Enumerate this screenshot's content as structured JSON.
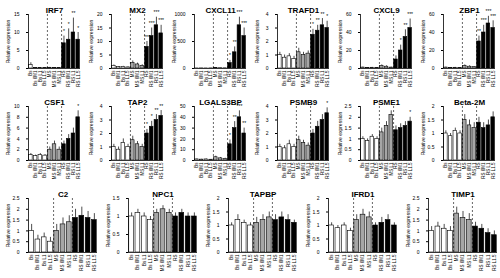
{
  "chart_data": [
    {
      "type": "bar",
      "title": "IRF7",
      "y_label": "Relative expression",
      "categories": [
        "Bs",
        "Bs 6M1",
        "Bs L1",
        "Bs L1.5",
        "MS",
        "MS 6M1",
        "MS L1",
        "RS",
        "RS 6M1",
        "RS L1",
        "RS L1.5"
      ],
      "values": [
        1,
        0.1,
        0.1,
        0.1,
        0.2,
        0.1,
        0.1,
        7,
        8,
        10,
        8
      ],
      "errors": [
        0.6,
        0.05,
        0.05,
        0.05,
        0.1,
        0.05,
        0.05,
        2,
        3,
        4,
        2
      ],
      "stars": [
        null,
        null,
        null,
        null,
        null,
        null,
        null,
        "*",
        "*",
        "**",
        "*"
      ],
      "colors": [
        "#ffffff",
        "#ffffff",
        "#ffffff",
        "#ffffff",
        "#a6a6a6",
        "#a6a6a6",
        "#a6a6a6",
        "#000000",
        "#000000",
        "#000000",
        "#000000"
      ],
      "ylim": [
        0,
        15
      ],
      "yticks": [
        0,
        5,
        10,
        15
      ]
    },
    {
      "type": "bar",
      "title": "MX2",
      "y_label": "Relative expression",
      "categories": [
        "Bs",
        "Bs 6M1",
        "Bs L1",
        "Bs L1.5",
        "MS",
        "MS 6M1",
        "MS L1",
        "RS",
        "RS 6M1",
        "RS L1",
        "RS L1.5"
      ],
      "values": [
        1,
        0.5,
        0.6,
        0.4,
        2,
        1.5,
        1,
        8,
        12,
        16,
        13
      ],
      "errors": [
        0.3,
        0.2,
        0.2,
        0.2,
        0.8,
        0.5,
        0.4,
        2,
        3,
        3,
        3
      ],
      "stars": [
        null,
        null,
        null,
        null,
        null,
        null,
        null,
        "***",
        "***",
        "***",
        "***"
      ],
      "colors": [
        "#ffffff",
        "#ffffff",
        "#ffffff",
        "#ffffff",
        "#a6a6a6",
        "#a6a6a6",
        "#a6a6a6",
        "#000000",
        "#000000",
        "#000000",
        "#000000"
      ],
      "ylim": [
        0,
        20
      ],
      "yticks": [
        0,
        5,
        10,
        15,
        20
      ]
    },
    {
      "type": "bar",
      "title": "CXCL11",
      "y_label": "Relative expression",
      "categories": [
        "Bs",
        "Bs 6M1",
        "Bs L1",
        "Bs L1.5",
        "MS",
        "MS 6M1",
        "MS L1",
        "RS",
        "RS 6M1",
        "RS L1",
        "RS L1.5"
      ],
      "values": [
        1,
        2,
        1,
        2,
        10,
        5,
        3,
        100,
        300,
        800,
        600
      ],
      "errors": [
        1,
        1,
        1,
        1,
        5,
        3,
        2,
        50,
        100,
        150,
        150
      ],
      "stars": [
        null,
        null,
        null,
        null,
        null,
        null,
        null,
        "*",
        "**",
        "***",
        "***"
      ],
      "colors": [
        "#ffffff",
        "#ffffff",
        "#ffffff",
        "#ffffff",
        "#a6a6a6",
        "#a6a6a6",
        "#a6a6a6",
        "#000000",
        "#000000",
        "#000000",
        "#000000"
      ],
      "ylim": [
        0,
        1000
      ],
      "yticks": [
        0,
        500,
        1000
      ]
    },
    {
      "type": "bar",
      "title": "TRAFD1",
      "y_label": "Relative expression",
      "categories": [
        "Bs",
        "Bs 6M1",
        "Bs L1",
        "Bs L1.5",
        "MS",
        "MS 6M1",
        "MS L1",
        "RS",
        "RS 6M1",
        "RS L1",
        "RS L1.5"
      ],
      "values": [
        1,
        0.8,
        0.9,
        0.7,
        1.2,
        1,
        1.1,
        2.5,
        2.8,
        3.2,
        3
      ],
      "errors": [
        0.2,
        0.2,
        0.2,
        0.2,
        0.3,
        0.2,
        0.2,
        0.4,
        0.4,
        0.5,
        0.5
      ],
      "stars": [
        null,
        null,
        null,
        null,
        null,
        null,
        null,
        "*",
        "**",
        "**",
        "*"
      ],
      "colors": [
        "#ffffff",
        "#ffffff",
        "#ffffff",
        "#ffffff",
        "#a6a6a6",
        "#a6a6a6",
        "#a6a6a6",
        "#000000",
        "#000000",
        "#000000",
        "#000000"
      ],
      "ylim": [
        0,
        4
      ],
      "yticks": [
        0,
        1,
        2,
        3,
        4
      ]
    },
    {
      "type": "bar",
      "title": "CXCL9",
      "y_label": "Relative expression",
      "categories": [
        "Bs",
        "Bs 6M1",
        "Bs L1",
        "Bs L1.5",
        "MS",
        "MS 6M1",
        "MS L1",
        "RS",
        "RS 6M1",
        "RS L1",
        "RS L1.5"
      ],
      "values": [
        1,
        0.5,
        0.8,
        0.5,
        3,
        2,
        1,
        10,
        20,
        35,
        45
      ],
      "errors": [
        0.5,
        0.3,
        0.4,
        0.3,
        1,
        1,
        0.5,
        4,
        6,
        8,
        10
      ],
      "stars": [
        null,
        null,
        null,
        null,
        null,
        null,
        null,
        null,
        "*",
        "**",
        "***"
      ],
      "colors": [
        "#ffffff",
        "#ffffff",
        "#ffffff",
        "#ffffff",
        "#a6a6a6",
        "#a6a6a6",
        "#a6a6a6",
        "#000000",
        "#000000",
        "#000000",
        "#000000"
      ],
      "ylim": [
        0,
        60
      ],
      "yticks": [
        0,
        20,
        40,
        60
      ]
    },
    {
      "type": "bar",
      "title": "ZBP1",
      "y_label": "Relative expression",
      "categories": [
        "Bs",
        "Bs 6M1",
        "Bs L1",
        "Bs L1.5",
        "MS",
        "MS 6M1",
        "MS L1",
        "RS",
        "RS 6M1",
        "RS L1",
        "RS L1.5"
      ],
      "values": [
        1,
        0.6,
        0.8,
        0.5,
        3,
        2,
        1.5,
        30,
        40,
        50,
        45
      ],
      "errors": [
        0.5,
        0.3,
        0.4,
        0.3,
        1,
        1,
        0.5,
        6,
        8,
        8,
        8
      ],
      "stars": [
        null,
        null,
        null,
        null,
        null,
        null,
        null,
        "**",
        "***",
        "***",
        "***"
      ],
      "colors": [
        "#ffffff",
        "#ffffff",
        "#ffffff",
        "#ffffff",
        "#a6a6a6",
        "#a6a6a6",
        "#a6a6a6",
        "#000000",
        "#000000",
        "#000000",
        "#000000"
      ],
      "ylim": [
        0,
        60
      ],
      "yticks": [
        0,
        20,
        40,
        60
      ]
    },
    {
      "type": "bar",
      "title": "CSF1",
      "y_label": "Relative expression",
      "categories": [
        "Bs",
        "Bs 6M1",
        "Bs L1",
        "Bs L1.5",
        "MS",
        "MS 6M1",
        "MS L1",
        "RS",
        "RS 6M1",
        "RS L1",
        "RS L1.5"
      ],
      "values": [
        1,
        0.8,
        1,
        0.9,
        2,
        3,
        2,
        3,
        4,
        5,
        8
      ],
      "errors": [
        0.3,
        0.2,
        0.3,
        0.2,
        0.5,
        0.6,
        0.5,
        0.6,
        0.8,
        1,
        1.2
      ],
      "stars": [
        null,
        null,
        null,
        null,
        null,
        null,
        null,
        null,
        null,
        null,
        "*"
      ],
      "colors": [
        "#ffffff",
        "#ffffff",
        "#ffffff",
        "#ffffff",
        "#a6a6a6",
        "#a6a6a6",
        "#a6a6a6",
        "#000000",
        "#000000",
        "#000000",
        "#000000"
      ],
      "ylim": [
        0,
        10
      ],
      "yticks": [
        0,
        2,
        4,
        6,
        8,
        10
      ]
    },
    {
      "type": "bar",
      "title": "TAP2",
      "y_label": "Relative expression",
      "categories": [
        "Bs",
        "Bs 6M1",
        "Bs L1",
        "Bs L1.5",
        "MS",
        "MS 6M1",
        "MS L1",
        "RS",
        "RS 6M1",
        "RS L1",
        "RS L1.5"
      ],
      "values": [
        1,
        0.8,
        1.3,
        1,
        1.5,
        1.2,
        1,
        2,
        2.5,
        3,
        3.3
      ],
      "errors": [
        0.2,
        0.2,
        0.3,
        0.2,
        0.3,
        0.2,
        0.2,
        0.3,
        0.4,
        0.4,
        0.4
      ],
      "stars": [
        null,
        null,
        null,
        null,
        null,
        null,
        null,
        "*",
        "*",
        "**",
        "**"
      ],
      "colors": [
        "#ffffff",
        "#ffffff",
        "#ffffff",
        "#ffffff",
        "#a6a6a6",
        "#a6a6a6",
        "#a6a6a6",
        "#000000",
        "#000000",
        "#000000",
        "#000000"
      ],
      "ylim": [
        0,
        4
      ],
      "yticks": [
        0,
        1,
        2,
        3,
        4
      ]
    },
    {
      "type": "bar",
      "title": "LGALS3BP",
      "y_label": "Relative expression",
      "categories": [
        "Bs",
        "Bs 6M1",
        "Bs L1",
        "Bs L1.5",
        "MS",
        "MS 6M1",
        "MS L1",
        "RS",
        "RS 6M1",
        "RS L1",
        "RS L1.5"
      ],
      "values": [
        1,
        0.8,
        1,
        0.7,
        3,
        2,
        1.5,
        15,
        30,
        40,
        25
      ],
      "errors": [
        0.4,
        0.3,
        0.4,
        0.3,
        1,
        0.8,
        0.6,
        4,
        6,
        6,
        5
      ],
      "stars": [
        null,
        null,
        null,
        null,
        null,
        null,
        null,
        "*",
        "**",
        "***",
        "**"
      ],
      "colors": [
        "#ffffff",
        "#ffffff",
        "#ffffff",
        "#ffffff",
        "#a6a6a6",
        "#a6a6a6",
        "#a6a6a6",
        "#000000",
        "#000000",
        "#000000",
        "#000000"
      ],
      "ylim": [
        0,
        50
      ],
      "yticks": [
        0,
        10,
        20,
        30,
        40,
        50
      ]
    },
    {
      "type": "bar",
      "title": "PSMB9",
      "y_label": "Relative expression",
      "categories": [
        "Bs",
        "Bs 6M1",
        "Bs L1",
        "Bs L1.5",
        "MS",
        "MS 6M1",
        "MS L1",
        "RS",
        "RS 6M1",
        "RS L1",
        "RS L1.5"
      ],
      "values": [
        1,
        0.9,
        1.2,
        1,
        1.5,
        1.3,
        1.1,
        2,
        2.5,
        3,
        3.5
      ],
      "errors": [
        0.2,
        0.2,
        0.3,
        0.2,
        0.3,
        0.2,
        0.2,
        0.3,
        0.4,
        0.4,
        0.4
      ],
      "stars": [
        null,
        null,
        null,
        null,
        null,
        null,
        null,
        null,
        null,
        null,
        "*"
      ],
      "colors": [
        "#ffffff",
        "#ffffff",
        "#ffffff",
        "#ffffff",
        "#a6a6a6",
        "#a6a6a6",
        "#a6a6a6",
        "#000000",
        "#000000",
        "#000000",
        "#000000"
      ],
      "ylim": [
        0,
        4
      ],
      "yticks": [
        0,
        1,
        2,
        3,
        4
      ]
    },
    {
      "type": "bar",
      "title": "PSME1",
      "y_label": "Relative expression",
      "categories": [
        "Bs",
        "Bs 6M1",
        "Bs L1",
        "Bs L1.5",
        "MS",
        "MS 6M1",
        "MS L1",
        "RS",
        "RS 6M1",
        "RS L1",
        "RS L1.5"
      ],
      "values": [
        1,
        0.9,
        1.1,
        1,
        1.3,
        1.6,
        2.1,
        1.4,
        1.5,
        1.6,
        1.8
      ],
      "errors": [
        0.1,
        0.1,
        0.1,
        0.1,
        0.2,
        0.2,
        0.2,
        0.2,
        0.2,
        0.2,
        0.2
      ],
      "stars": [
        null,
        null,
        null,
        null,
        null,
        null,
        null,
        null,
        null,
        null,
        "*"
      ],
      "colors": [
        "#ffffff",
        "#ffffff",
        "#ffffff",
        "#ffffff",
        "#a6a6a6",
        "#a6a6a6",
        "#a6a6a6",
        "#000000",
        "#000000",
        "#000000",
        "#000000"
      ],
      "ylim": [
        0,
        2.5
      ],
      "yticks": [
        0,
        0.5,
        1,
        1.5,
        2,
        2.5
      ]
    },
    {
      "type": "bar",
      "title": "Beta-2M",
      "y_label": "Relative expression",
      "categories": [
        "Bs",
        "Bs 6M1",
        "Bs L1",
        "Bs L1.5",
        "MS",
        "MS 6M1",
        "MS L1",
        "RS",
        "RS 6M1",
        "RS L1",
        "RS L1.5"
      ],
      "values": [
        1,
        0.9,
        1.1,
        1,
        1.5,
        1.3,
        1.2,
        1.4,
        1.2,
        1.3,
        1.6
      ],
      "errors": [
        0.1,
        0.1,
        0.1,
        0.1,
        0.2,
        0.2,
        0.2,
        0.2,
        0.2,
        0.2,
        0.2
      ],
      "colors": [
        "#ffffff",
        "#ffffff",
        "#ffffff",
        "#ffffff",
        "#a6a6a6",
        "#a6a6a6",
        "#a6a6a6",
        "#000000",
        "#000000",
        "#000000",
        "#000000"
      ],
      "ylim": [
        0,
        2
      ],
      "yticks": [
        0,
        0.5,
        1,
        1.5,
        2
      ]
    },
    {
      "type": "bar",
      "title": "C2",
      "y_label": "Relative expression",
      "categories": [
        "Bs",
        "Bs 6M1",
        "Bs L1",
        "Bs L1.5",
        "MS",
        "MS 6M1",
        "MS L1",
        "RS",
        "RS 6M1",
        "RS L1",
        "RS L1.5"
      ],
      "values": [
        1,
        0.6,
        0.7,
        0.5,
        1,
        1.3,
        1.4,
        1.6,
        1.7,
        1.6,
        1.5
      ],
      "errors": [
        0.3,
        0.2,
        0.2,
        0.2,
        0.3,
        0.3,
        0.3,
        0.4,
        0.4,
        0.3,
        0.3
      ],
      "colors": [
        "#ffffff",
        "#ffffff",
        "#ffffff",
        "#ffffff",
        "#a6a6a6",
        "#a6a6a6",
        "#a6a6a6",
        "#000000",
        "#000000",
        "#000000",
        "#000000"
      ],
      "ylim": [
        0,
        2.5
      ],
      "yticks": [
        0,
        0.5,
        1,
        1.5,
        2,
        2.5
      ]
    },
    {
      "type": "bar",
      "title": "NPC1",
      "y_label": "Relative expression",
      "categories": [
        "Bs",
        "Bs 6M1",
        "Bs L1",
        "Bs L1.5",
        "MS",
        "MS 6M1",
        "MS L1",
        "RS",
        "RS 6M1",
        "RS L1",
        "RS L1.5"
      ],
      "values": [
        1,
        1.1,
        1,
        0.9,
        1.1,
        1.2,
        1.1,
        1,
        1.1,
        1,
        1
      ],
      "errors": [
        0.1,
        0.1,
        0.1,
        0.1,
        0.1,
        0.1,
        0.1,
        0.1,
        0.1,
        0.1,
        0.1
      ],
      "colors": [
        "#ffffff",
        "#ffffff",
        "#ffffff",
        "#ffffff",
        "#a6a6a6",
        "#a6a6a6",
        "#a6a6a6",
        "#000000",
        "#000000",
        "#000000",
        "#000000"
      ],
      "ylim": [
        0,
        1.5
      ],
      "yticks": [
        0,
        0.5,
        1,
        1.5
      ]
    },
    {
      "type": "bar",
      "title": "TAPBP",
      "y_label": "Relative expression",
      "categories": [
        "Bs",
        "Bs 6M1",
        "Bs L1",
        "Bs L1.5",
        "MS",
        "MS 6M1",
        "MS L1",
        "RS",
        "RS 6M1",
        "RS L1",
        "RS L1.5"
      ],
      "values": [
        1,
        1.2,
        1.1,
        1,
        1.1,
        1.2,
        1.3,
        1.2,
        1.3,
        1.2,
        1.1
      ],
      "errors": [
        0.1,
        0.2,
        0.1,
        0.1,
        0.2,
        0.2,
        0.2,
        0.2,
        0.2,
        0.2,
        0.1
      ],
      "colors": [
        "#ffffff",
        "#ffffff",
        "#ffffff",
        "#ffffff",
        "#a6a6a6",
        "#a6a6a6",
        "#a6a6a6",
        "#000000",
        "#000000",
        "#000000",
        "#000000"
      ],
      "ylim": [
        0,
        2
      ],
      "yticks": [
        0,
        0.5,
        1,
        1.5,
        2
      ]
    },
    {
      "type": "bar",
      "title": "IFRD1",
      "y_label": "Relative expression",
      "categories": [
        "Bs",
        "Bs 6M1",
        "Bs L1",
        "Bs L1.5",
        "MS",
        "MS 6M1",
        "MS L1",
        "RS",
        "RS 6M1",
        "RS L1",
        "RS L1.5"
      ],
      "values": [
        1,
        0.9,
        1,
        0.8,
        1.2,
        1.4,
        1.3,
        1,
        1.1,
        1.2,
        1
      ],
      "errors": [
        0.1,
        0.1,
        0.1,
        0.1,
        0.2,
        0.2,
        0.2,
        0.1,
        0.2,
        0.2,
        0.1
      ],
      "colors": [
        "#ffffff",
        "#ffffff",
        "#ffffff",
        "#ffffff",
        "#a6a6a6",
        "#a6a6a6",
        "#a6a6a6",
        "#000000",
        "#000000",
        "#000000",
        "#000000"
      ],
      "ylim": [
        0,
        2
      ],
      "yticks": [
        0,
        0.5,
        1,
        1.5,
        2
      ]
    },
    {
      "type": "bar",
      "title": "TIMP1",
      "y_label": "Relative expression",
      "categories": [
        "Bs",
        "Bs 6M1",
        "Bs L1",
        "Bs L1.5",
        "MS",
        "MS 6M1",
        "MS L1",
        "RS",
        "RS 6M1",
        "RS L1",
        "RS L1.5"
      ],
      "values": [
        1,
        1.2,
        1.1,
        1,
        1.8,
        1.6,
        1.5,
        1.2,
        1.1,
        0.9,
        0.8
      ],
      "errors": [
        0.2,
        0.2,
        0.2,
        0.2,
        0.3,
        0.3,
        0.3,
        0.2,
        0.2,
        0.2,
        0.2
      ],
      "colors": [
        "#ffffff",
        "#ffffff",
        "#ffffff",
        "#ffffff",
        "#a6a6a6",
        "#a6a6a6",
        "#a6a6a6",
        "#000000",
        "#000000",
        "#000000",
        "#000000"
      ],
      "ylim": [
        0,
        2.5
      ],
      "yticks": [
        0,
        0.5,
        1,
        1.5,
        2,
        2.5
      ]
    }
  ]
}
